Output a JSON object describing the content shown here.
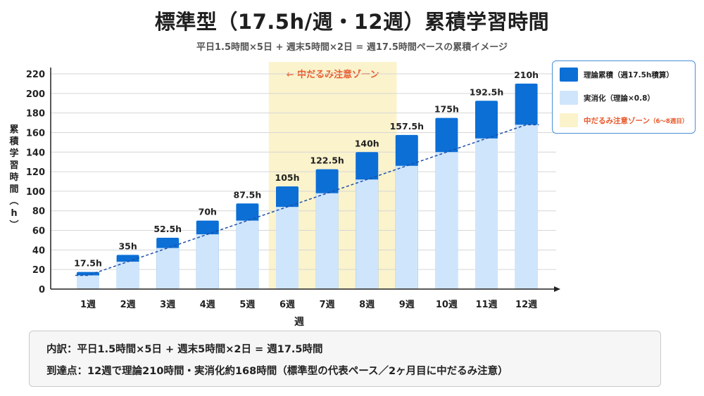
{
  "title": "標準型（17.5h/週・12週）累積学習時間",
  "subtitle": "平日1.5時間×5日 + 週末5時間×2日 = 週17.5時間ペースの累積イメージ",
  "colors": {
    "theory": "#0b6fd6",
    "practical": "#cfe5fb",
    "zone": "#fbf3cc",
    "zone_text": "#e8582a",
    "dashed_line": "#1d4fa8"
  },
  "chart_data": {
    "type": "bar",
    "categories": [
      "1週",
      "2週",
      "3週",
      "4週",
      "5週",
      "6週",
      "7週",
      "8週",
      "9週",
      "10週",
      "11週",
      "12週"
    ],
    "series": [
      {
        "name": "理論累積（週17.5h積算）",
        "values": [
          17.5,
          35,
          52.5,
          70,
          87.5,
          105,
          122.5,
          140,
          157.5,
          175,
          192.5,
          210
        ]
      },
      {
        "name": "実消化（理論×0.8）",
        "values": [
          14,
          28,
          42,
          56,
          70,
          84,
          98,
          112,
          126,
          140,
          154,
          168
        ]
      }
    ],
    "data_labels": [
      "17.5h",
      "35h",
      "52.5h",
      "70h",
      "87.5h",
      "105h",
      "122.5h",
      "140h",
      "157.5h",
      "175h",
      "192.5h",
      "210h"
    ],
    "xlabel": "週",
    "ylabel": "累積学習時間（h）",
    "ylim": [
      0,
      220
    ],
    "yticks": [
      0,
      20,
      40,
      60,
      80,
      100,
      120,
      140,
      160,
      180,
      200,
      220
    ],
    "grid": true,
    "legend_position": "top-right",
    "zone": {
      "label": "← 中だるみ注意ゾーン",
      "legend_label": "中だるみ注意ゾーン",
      "legend_note": "（6〜8週目）",
      "from_week": 6,
      "to_week": 8
    }
  },
  "breakdown": {
    "line1": "内訳：平日1.5時間×5日 + 週末5時間×2日 = 週17.5時間",
    "line2": "到達点：12週で理論210時間・実消化約168時間（標準型の代表ペース／2ヶ月目に中だるみ注意）"
  }
}
